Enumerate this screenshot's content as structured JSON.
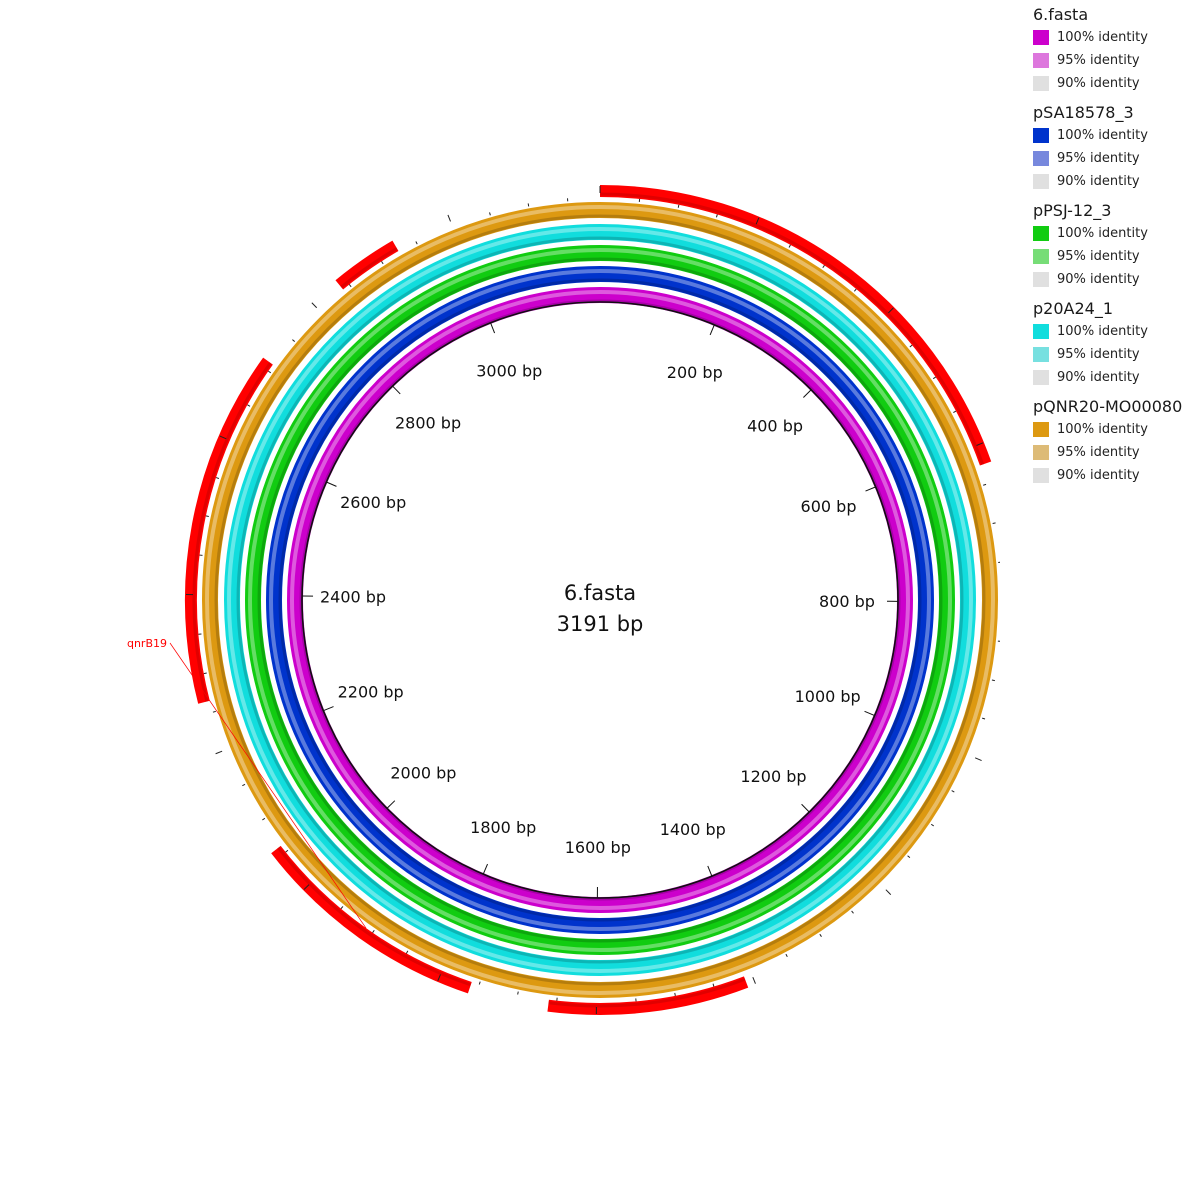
{
  "genome": {
    "name": "6.fasta",
    "length_label": "3191 bp",
    "length": 3191
  },
  "tick_labels": [
    {
      "pos": 200,
      "text": "200 bp"
    },
    {
      "pos": 400,
      "text": "400 bp"
    },
    {
      "pos": 600,
      "text": "600 bp"
    },
    {
      "pos": 800,
      "text": "800 bp"
    },
    {
      "pos": 1000,
      "text": "1000 bp"
    },
    {
      "pos": 1200,
      "text": "1200 bp"
    },
    {
      "pos": 1400,
      "text": "1400 bp"
    },
    {
      "pos": 1600,
      "text": "1600 bp"
    },
    {
      "pos": 1800,
      "text": "1800 bp"
    },
    {
      "pos": 2000,
      "text": "2000 bp"
    },
    {
      "pos": 2200,
      "text": "2200 bp"
    },
    {
      "pos": 2400,
      "text": "2400 bp"
    },
    {
      "pos": 2600,
      "text": "2600 bp"
    },
    {
      "pos": 2800,
      "text": "2800 bp"
    },
    {
      "pos": 3000,
      "text": "3000 bp"
    }
  ],
  "rings": [
    {
      "name": "6.fasta",
      "color": "#cc00cc",
      "legend": [
        "100% identity",
        "95% identity",
        "90% identity"
      ],
      "swatches": [
        "#cc00cc",
        "#dd77dd",
        "#e0e0e0"
      ]
    },
    {
      "name": "pSA18578_3",
      "color": "#0033cc",
      "legend": [
        "100% identity",
        "95% identity",
        "90% identity"
      ],
      "swatches": [
        "#0033cc",
        "#7788dd",
        "#e0e0e0"
      ]
    },
    {
      "name": "pPSJ-12_3",
      "color": "#11cc11",
      "legend": [
        "100% identity",
        "95% identity",
        "90% identity"
      ],
      "swatches": [
        "#11cc11",
        "#77dd77",
        "#e0e0e0"
      ]
    },
    {
      "name": "p20A24_1",
      "color": "#11dddd",
      "legend": [
        "100% identity",
        "95% identity",
        "90% identity"
      ],
      "swatches": [
        "#11dddd",
        "#77e0e0",
        "#e0e0e0"
      ]
    },
    {
      "name": "pQNR20-MO00080",
      "color": "#dd9911",
      "legend": [
        "100% identity",
        "95% identity",
        "90% identity"
      ],
      "swatches": [
        "#dd9911",
        "#ddbb77",
        "#e0e0e0"
      ]
    }
  ],
  "features": [
    {
      "start": 0,
      "end": 625
    },
    {
      "start": 2840,
      "end": 2925
    },
    {
      "start": 2265,
      "end": 2710
    },
    {
      "start": 1760,
      "end": 2060,
      "label": "qnrB19"
    },
    {
      "start": 1410,
      "end": 1660
    }
  ]
}
